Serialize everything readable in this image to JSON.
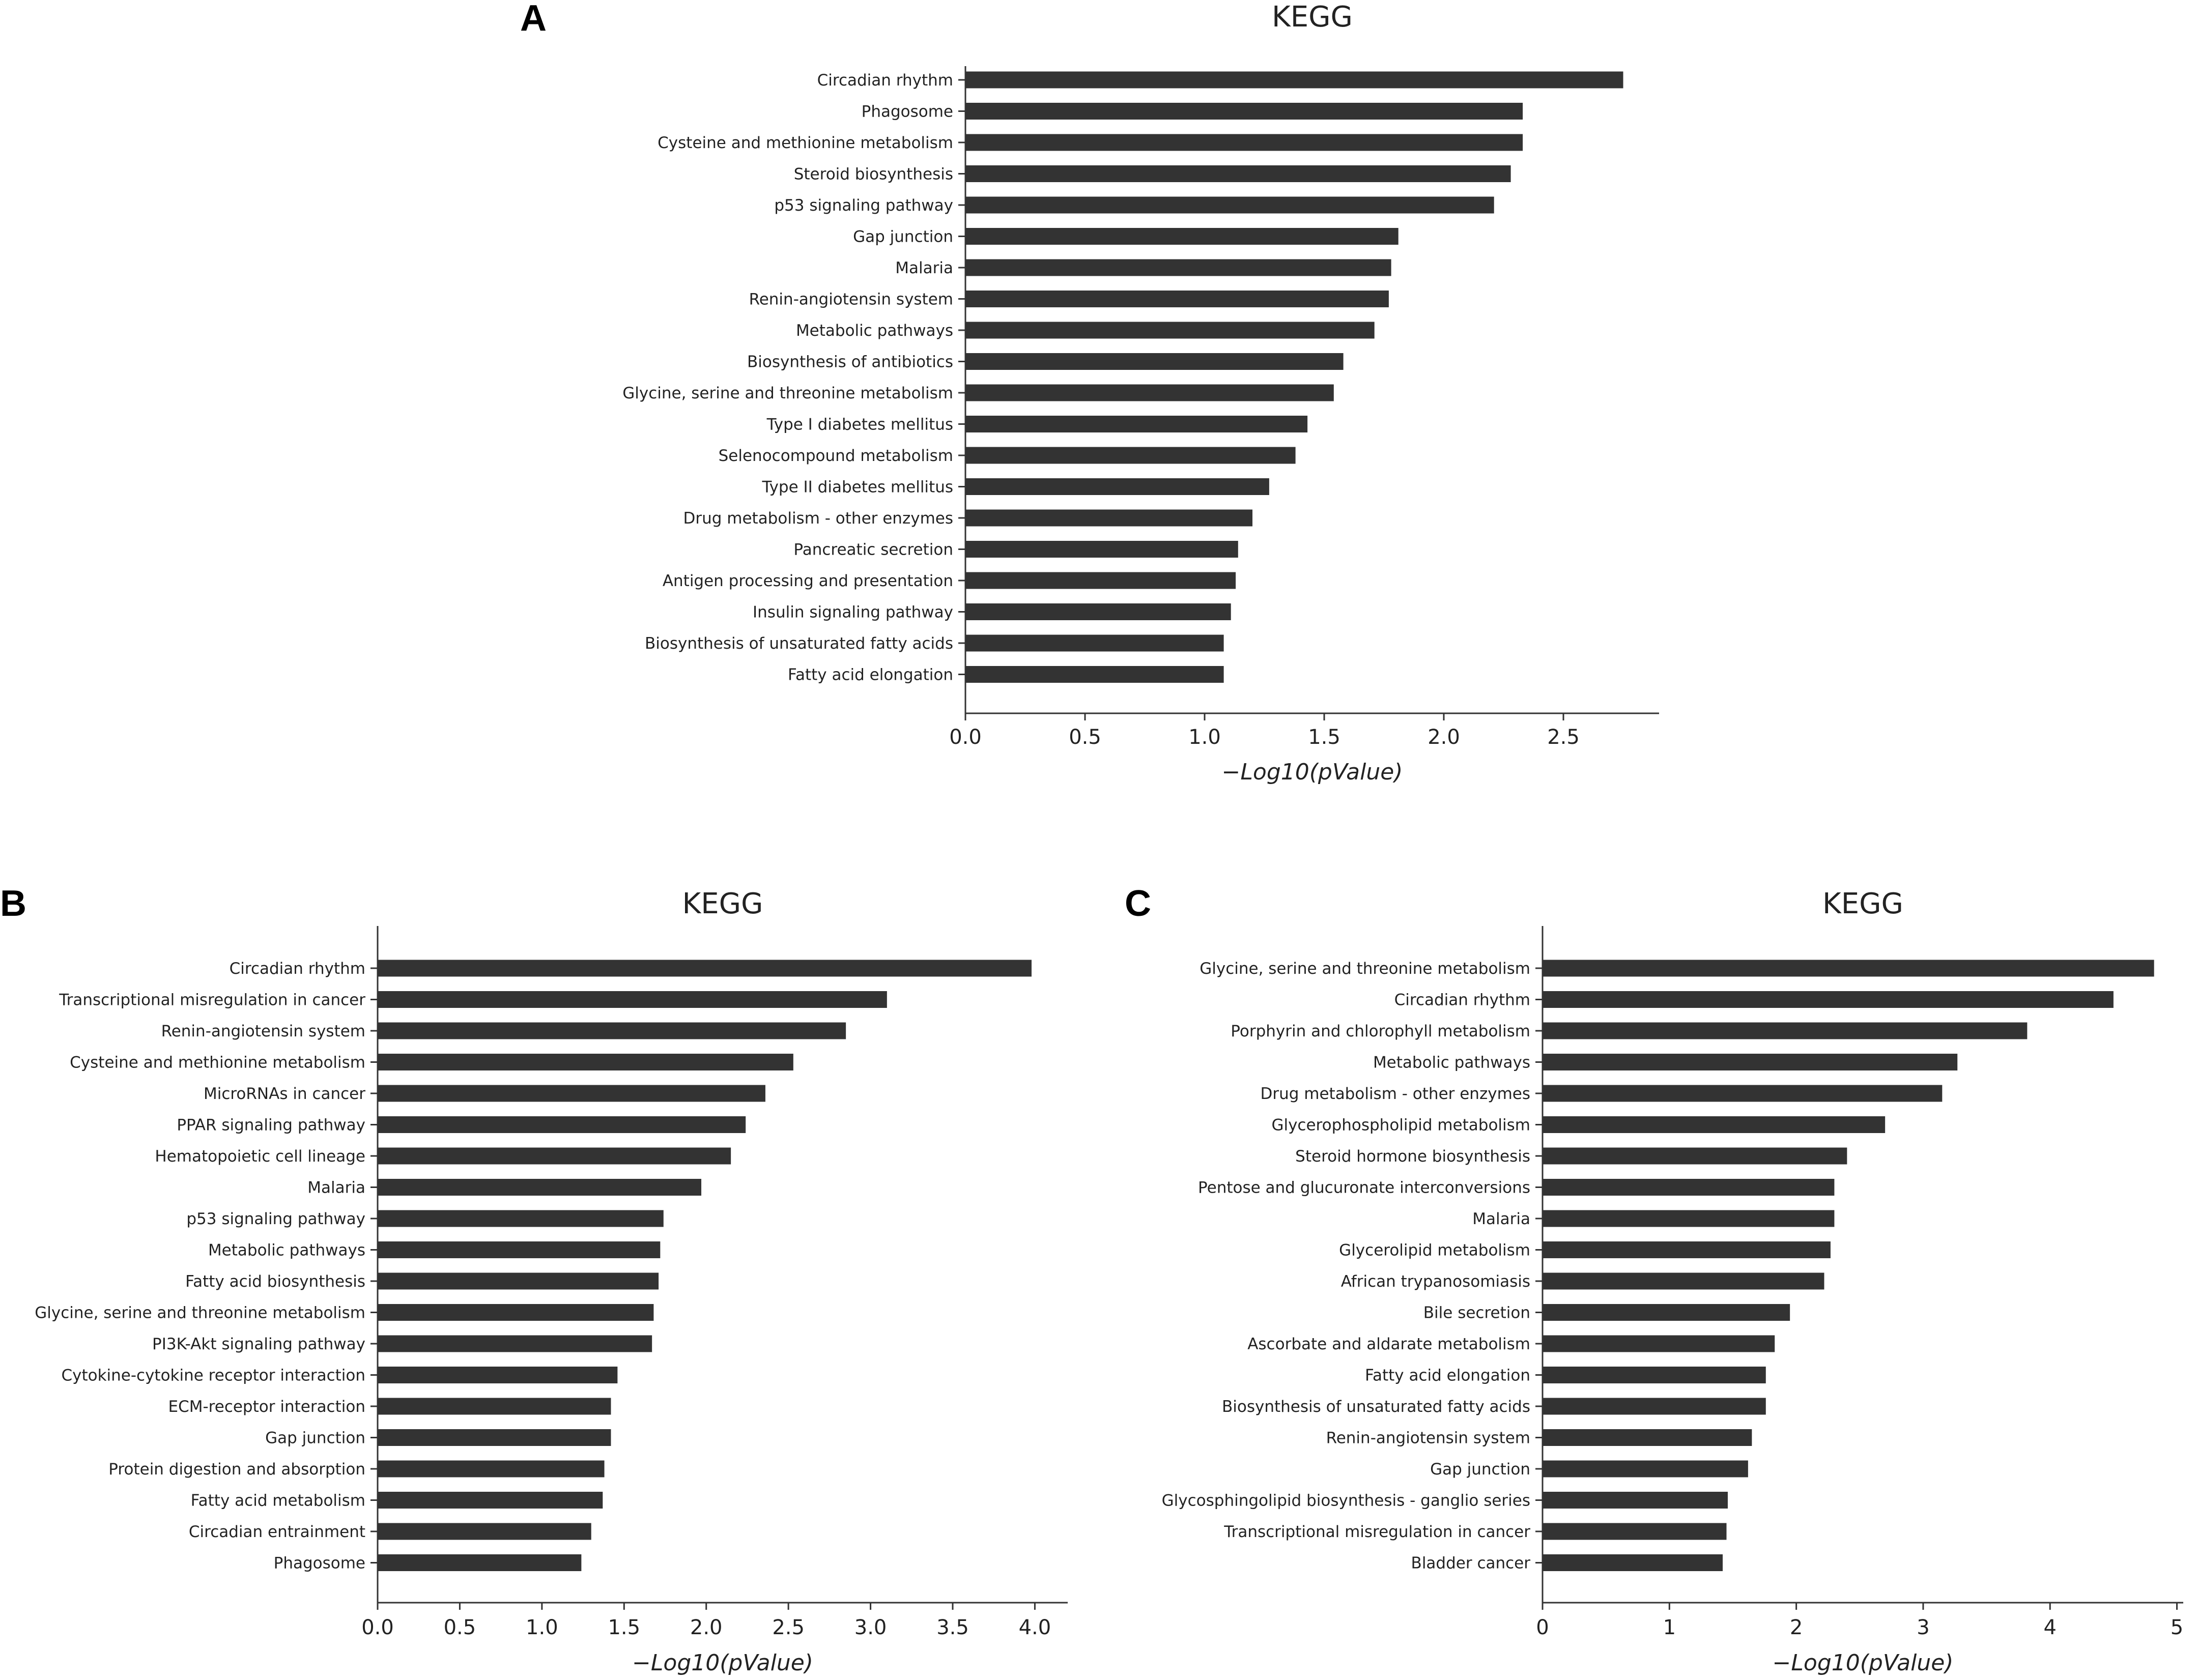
{
  "chart_data": [
    {
      "panel": "A",
      "type": "bar",
      "orientation": "horizontal",
      "title": "KEGG",
      "xlabel": "−Log10(pValue)",
      "xlim": [
        0,
        2.9
      ],
      "xticks": [
        "0.0",
        "0.5",
        "1.0",
        "1.5",
        "2.0",
        "2.5"
      ],
      "categories": [
        "Circadian rhythm",
        "Phagosome",
        "Cysteine and methionine metabolism",
        "Steroid biosynthesis",
        "p53 signaling pathway",
        "Gap junction",
        "Malaria",
        "Renin-angiotensin system",
        "Metabolic pathways",
        "Biosynthesis of antibiotics",
        "Glycine, serine and threonine metabolism",
        "Type I diabetes mellitus",
        "Selenocompound metabolism",
        "Type II diabetes mellitus",
        "Drug metabolism - other enzymes",
        "Pancreatic secretion",
        "Antigen processing and presentation",
        "Insulin signaling pathway",
        "Biosynthesis of unsaturated fatty acids",
        "Fatty acid elongation"
      ],
      "values": [
        2.75,
        2.33,
        2.33,
        2.28,
        2.21,
        1.81,
        1.78,
        1.77,
        1.71,
        1.58,
        1.54,
        1.43,
        1.38,
        1.27,
        1.2,
        1.14,
        1.13,
        1.11,
        1.08,
        1.08
      ]
    },
    {
      "panel": "B",
      "type": "bar",
      "orientation": "horizontal",
      "title": "KEGG",
      "xlabel": "−Log10(pValue)",
      "xlim": [
        0,
        4.2
      ],
      "xticks": [
        "0.0",
        "0.5",
        "1.0",
        "1.5",
        "2.0",
        "2.5",
        "3.0",
        "3.5",
        "4.0"
      ],
      "categories": [
        "Circadian rhythm",
        "Transcriptional misregulation in cancer",
        "Renin-angiotensin system",
        "Cysteine and methionine metabolism",
        "MicroRNAs in cancer",
        "PPAR signaling pathway",
        "Hematopoietic cell lineage",
        "Malaria",
        "p53 signaling pathway",
        "Metabolic pathways",
        "Fatty acid biosynthesis",
        "Glycine, serine and threonine metabolism",
        "PI3K-Akt signaling pathway",
        "Cytokine-cytokine receptor interaction",
        "ECM-receptor interaction",
        "Gap junction",
        "Protein digestion and absorption",
        "Fatty acid metabolism",
        "Circadian entrainment",
        "Phagosome"
      ],
      "values": [
        3.98,
        3.1,
        2.85,
        2.53,
        2.36,
        2.24,
        2.15,
        1.97,
        1.74,
        1.72,
        1.71,
        1.68,
        1.67,
        1.46,
        1.42,
        1.42,
        1.38,
        1.37,
        1.3,
        1.24
      ]
    },
    {
      "panel": "C",
      "type": "bar",
      "orientation": "horizontal",
      "title": "KEGG",
      "xlabel": "−Log10(pValue)",
      "xlim": [
        0,
        5.05
      ],
      "xticks": [
        "0",
        "1",
        "2",
        "3",
        "4",
        "5"
      ],
      "categories": [
        "Glycine, serine and threonine metabolism",
        "Circadian rhythm",
        "Porphyrin and chlorophyll metabolism",
        "Metabolic pathways",
        "Drug metabolism - other enzymes",
        "Glycerophospholipid metabolism",
        "Steroid hormone biosynthesis",
        "Pentose and glucuronate interconversions",
        "Malaria",
        "Glycerolipid metabolism",
        "African trypanosomiasis",
        "Bile secretion",
        "Ascorbate and aldarate metabolism",
        "Fatty acid elongation",
        "Biosynthesis of unsaturated fatty acids",
        "Renin-angiotensin system",
        "Gap junction",
        "Glycosphingolipid biosynthesis - ganglio series",
        "Transcriptional misregulation in cancer",
        "Bladder cancer"
      ],
      "values": [
        4.82,
        4.5,
        3.82,
        3.27,
        3.15,
        2.7,
        2.4,
        2.3,
        2.3,
        2.27,
        2.22,
        1.95,
        1.83,
        1.76,
        1.76,
        1.65,
        1.62,
        1.46,
        1.45,
        1.42
      ]
    }
  ]
}
